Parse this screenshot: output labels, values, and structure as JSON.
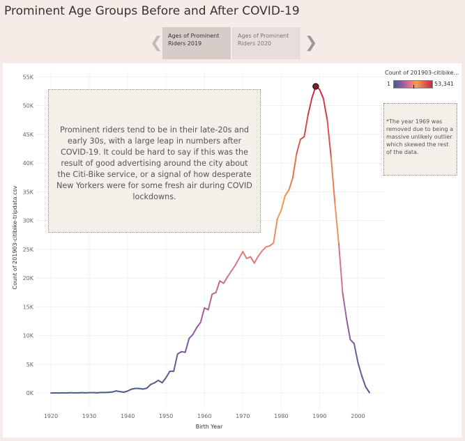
{
  "title": "Prominent Age Groups Before and After COVID-19",
  "story": {
    "points": [
      "Ages of Prominent Riders 2019",
      "Ages of Prominent Riders 2020"
    ],
    "selected": 0,
    "prev_arrow": "❮",
    "next_arrow": "❯"
  },
  "annotation": "Prominent riders tend to be in their late-20s and early 30s, with a large leap in numbers after COVID-19.  It could be hard to say if this was the result of good advertising around the city about the Citi-Bike service, or a signal of how desperate New Yorkers were for some fresh air during COVID lockdowns.",
  "note": "*The year 1969 was removed due to being a massive unlikely outlier which skewed the rest of the data.",
  "legend": {
    "title": "Count of 201903-citibike...",
    "min_label": "1",
    "max_label": "53,341",
    "colors": [
      "#4a5a8c",
      "#8a5aa0",
      "#d9708c",
      "#f0a050",
      "#e05a50",
      "#c42a45"
    ]
  },
  "chart_data": {
    "type": "line",
    "title": "",
    "xlabel": "Birth Year",
    "ylabel": "Count of 201903-citibike-tripdata.csv",
    "xlim": [
      1916,
      2007
    ],
    "ylim": [
      -3000,
      56000
    ],
    "x_ticks": [
      1920,
      1930,
      1940,
      1950,
      1960,
      1970,
      1980,
      1990,
      2000
    ],
    "y_ticks": [
      0,
      5000,
      10000,
      15000,
      20000,
      25000,
      30000,
      35000,
      40000,
      45000,
      50000,
      55000
    ],
    "y_tick_labels": [
      "0K",
      "5K",
      "10K",
      "15K",
      "20K",
      "25K",
      "30K",
      "35K",
      "40K",
      "45K",
      "50K",
      "55K"
    ],
    "x_tick_labels": [
      "1920",
      "1930",
      "1940",
      "1950",
      "1960",
      "1970",
      "1980",
      "1990",
      "2000"
    ],
    "color_scale_max": 53341,
    "peak_point": {
      "x": 1989,
      "y": 53341
    },
    "series": [
      {
        "x": [
          1920,
          1921,
          1922,
          1923,
          1924,
          1925,
          1926,
          1927,
          1928,
          1929,
          1930,
          1931,
          1932,
          1933,
          1934,
          1935,
          1936,
          1937,
          1938,
          1939,
          1940,
          1941,
          1942,
          1943,
          1944,
          1945,
          1946,
          1947,
          1948,
          1949,
          1950,
          1951,
          1952,
          1953,
          1954,
          1955,
          1956,
          1957,
          1958,
          1959,
          1960,
          1961,
          1962,
          1963,
          1964,
          1965,
          1966,
          1967,
          1968,
          1970,
          1971,
          1972,
          1973,
          1974,
          1975,
          1976,
          1977,
          1978,
          1979,
          1980,
          1981,
          1982,
          1983,
          1984,
          1985,
          1986,
          1987,
          1988,
          1989,
          1990,
          1991,
          1992,
          1993,
          1994,
          1995,
          1996,
          1997,
          1998,
          1999,
          2000,
          2001,
          2002,
          2003
        ],
        "y": [
          20,
          30,
          10,
          40,
          30,
          60,
          40,
          50,
          70,
          50,
          80,
          90,
          40,
          110,
          100,
          130,
          190,
          380,
          250,
          160,
          360,
          680,
          820,
          800,
          700,
          860,
          1500,
          1800,
          2200,
          1800,
          2700,
          3800,
          3800,
          6800,
          7200,
          7100,
          9500,
          10200,
          11400,
          12300,
          14800,
          14500,
          17200,
          17500,
          19500,
          19100,
          20200,
          21200,
          22200,
          24600,
          23400,
          23700,
          22600,
          23800,
          24700,
          25400,
          25600,
          26100,
          30300,
          31800,
          34300,
          35300,
          37400,
          41600,
          44100,
          44600,
          48400,
          51300,
          53341,
          52800,
          51200,
          47500,
          41000,
          33000,
          26000,
          17500,
          13000,
          9300,
          8600,
          5300,
          3000,
          1100,
          80
        ]
      }
    ]
  }
}
